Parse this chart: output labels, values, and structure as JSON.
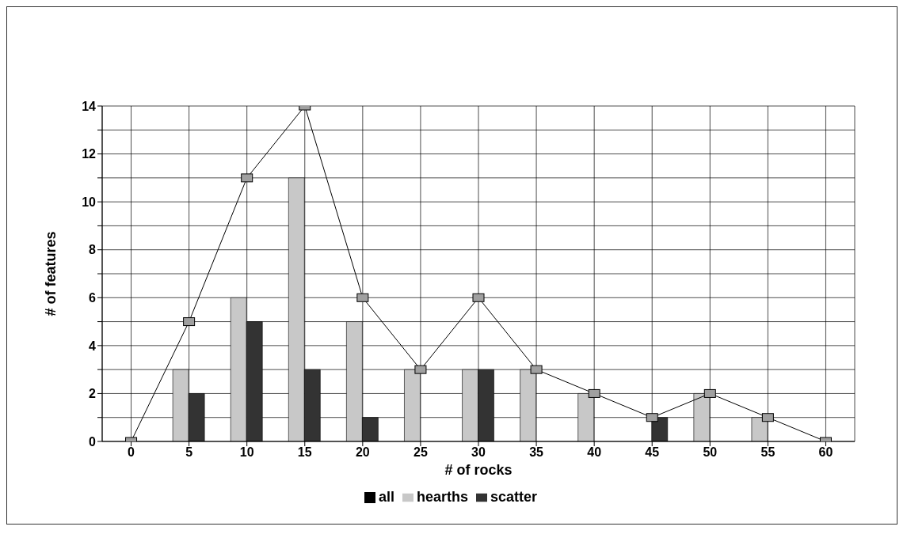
{
  "chart_data": {
    "type": "bar",
    "xlabel": "# of rocks",
    "ylabel": "# of features",
    "categories": [
      "0",
      "5",
      "10",
      "15",
      "20",
      "25",
      "30",
      "35",
      "40",
      "45",
      "50",
      "55",
      "60"
    ],
    "series": [
      {
        "name": "all",
        "type": "line",
        "color": "#000000",
        "values": [
          0,
          5,
          11,
          14,
          6,
          3,
          6,
          3,
          2,
          1,
          2,
          1,
          0
        ]
      },
      {
        "name": "hearths",
        "color": "#c8c8c8",
        "values": [
          0,
          3,
          6,
          11,
          5,
          3,
          3,
          3,
          2,
          0,
          2,
          1,
          0
        ]
      },
      {
        "name": "scatter",
        "color": "#333333",
        "values": [
          0,
          2,
          5,
          3,
          1,
          0,
          3,
          0,
          0,
          1,
          0,
          0,
          0
        ]
      }
    ],
    "ylim": [
      0,
      14
    ],
    "yticks": [
      0,
      {
        "value": 1,
        "label": null
      },
      2,
      {
        "value": 3,
        "label": null
      },
      4,
      {
        "value": 5,
        "label": null
      },
      6,
      {
        "value": 7,
        "label": null
      },
      8,
      {
        "value": 9,
        "label": null
      },
      10,
      {
        "value": 11,
        "label": null
      },
      12,
      {
        "value": 13,
        "label": null
      },
      14
    ],
    "grid": true,
    "legend": "bottom",
    "marker": "square",
    "line_style": "solid"
  }
}
